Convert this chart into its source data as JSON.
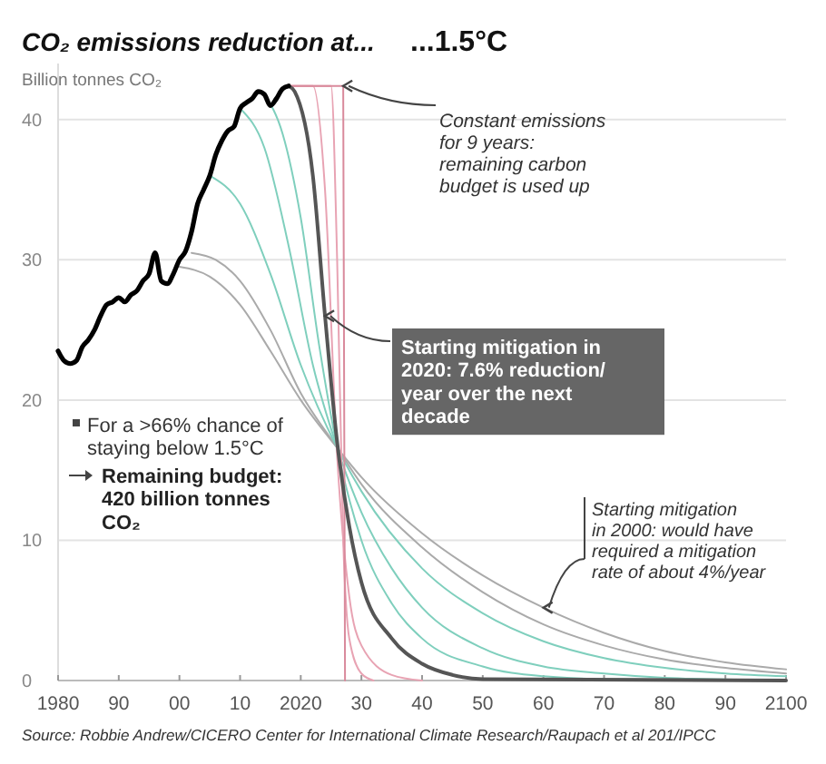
{
  "chart_data": {
    "type": "line",
    "title": "CO₂ emissions reduction at...",
    "subtitle": "...1.5°C",
    "ylabel": "Billion tonnes CO₂",
    "xlim": [
      1980,
      2100
    ],
    "ylim": [
      0,
      44
    ],
    "xticks": [
      1980,
      {
        "value": 1990,
        "label": "90"
      },
      {
        "value": 2000,
        "label": "00"
      },
      {
        "value": 2010,
        "label": "10"
      },
      2020,
      {
        "value": 2030,
        "label": "30"
      },
      {
        "value": 2040,
        "label": "40"
      },
      {
        "value": 2050,
        "label": "50"
      },
      {
        "value": 2060,
        "label": "60"
      },
      {
        "value": 2070,
        "label": "70"
      },
      {
        "value": 2080,
        "label": "80"
      },
      {
        "value": 2090,
        "label": "90"
      },
      2100
    ],
    "yticks": [
      0,
      10,
      20,
      30,
      40
    ],
    "grid": "y",
    "series": [
      {
        "color": "#aaaaaa",
        "x": [
          2000,
          2005,
          2010,
          2015,
          2020,
          2026,
          2030,
          2040,
          2050,
          2060,
          2070,
          2080,
          2090,
          2100
        ],
        "values": [
          29.5,
          28.8,
          26.8,
          23.5,
          20,
          16.6,
          14.5,
          10.5,
          7.5,
          5.2,
          3.4,
          2.1,
          1.3,
          0.8
        ]
      },
      {
        "color": "#aaaaaa",
        "x": [
          2002,
          2006,
          2010,
          2015,
          2020,
          2026,
          2030,
          2040,
          2050,
          2060,
          2070,
          2080,
          2090,
          2100
        ],
        "values": [
          30.5,
          30,
          28.5,
          25,
          20.5,
          16.6,
          14,
          9.5,
          6.3,
          4,
          2.5,
          1.5,
          0.9,
          0.5
        ]
      },
      {
        "color": "#7fcfbd",
        "x": [
          2005,
          2010,
          2015,
          2020,
          2026,
          2030,
          2040,
          2050,
          2060,
          2070,
          2080,
          2090,
          2100
        ],
        "values": [
          36,
          34,
          29,
          22.5,
          16.6,
          13.5,
          8,
          4.8,
          2.8,
          1.6,
          0.9,
          0.5,
          0.3
        ]
      },
      {
        "color": "#7fcfbd",
        "x": [
          2010,
          2014,
          2018,
          2022,
          2026,
          2030,
          2035,
          2040,
          2050,
          2060,
          2070,
          2080,
          2100
        ],
        "values": [
          40.8,
          38,
          31,
          22.5,
          16.6,
          12,
          8,
          5.2,
          2.3,
          1,
          0.5,
          0.2,
          0
        ]
      },
      {
        "color": "#7fcfbd",
        "x": [
          2014,
          2017,
          2020,
          2023,
          2026,
          2030,
          2035,
          2040,
          2050,
          2060,
          2070,
          2100
        ],
        "values": [
          41.8,
          39,
          33,
          24,
          16.6,
          10,
          5.5,
          3,
          1,
          0.3,
          0.1,
          0
        ]
      },
      {
        "color": "#e8a3b3",
        "x": [
          2018,
          2022,
          2024,
          2026,
          2028,
          2030,
          2035,
          2040
        ],
        "values": [
          42.4,
          42.4,
          35,
          16,
          6,
          2.5,
          0.4,
          0
        ]
      },
      {
        "color": "#e8a3b3",
        "x": [
          2018,
          2025,
          2026,
          2027,
          2028,
          2030,
          2032
        ],
        "values": [
          42.4,
          42.4,
          30,
          10,
          3,
          0.5,
          0
        ]
      },
      {
        "color": "#d98a9c",
        "x": [
          2018,
          2027,
          2027.3
        ],
        "values": [
          42.4,
          42.4,
          0
        ]
      },
      {
        "color": "#555555",
        "x": [
          2018,
          2019,
          2022,
          2024,
          2026,
          2028,
          2030,
          2035,
          2040,
          2045,
          2050,
          2100
        ],
        "values": [
          42.4,
          42,
          36,
          26,
          17,
          11,
          7,
          3,
          1.2,
          0.4,
          0.1,
          0
        ]
      },
      {
        "color": "#000000",
        "x": [
          1980,
          1981,
          1982,
          1983,
          1984,
          1985,
          1986,
          1987,
          1988,
          1989,
          1990,
          1991,
          1992,
          1993,
          1994,
          1995,
          1996,
          1997,
          1998,
          1999,
          2000,
          2001,
          2002,
          2003,
          2004,
          2005,
          2006,
          2007,
          2008,
          2009,
          2010,
          2011,
          2012,
          2013,
          2014,
          2015,
          2016,
          2017,
          2018
        ],
        "values": [
          23.5,
          22.8,
          22.6,
          22.8,
          23.8,
          24.3,
          25,
          26,
          26.8,
          27,
          27.3,
          27,
          27.5,
          27.8,
          28.5,
          29,
          30.5,
          28.5,
          28.3,
          29,
          30,
          30.6,
          32,
          34,
          35,
          36,
          37.5,
          38.5,
          39.2,
          39.5,
          40.8,
          41.2,
          41.5,
          42,
          41.8,
          41,
          41.5,
          42.2,
          42.4
        ]
      }
    ],
    "annotations": [
      {
        "text": "Constant emissions for 9 years: remaining carbon budget is used up",
        "x": 2027,
        "y": 42.4
      },
      {
        "text": "Starting mitigation in 2020: 7.6% reduction/ year over the next decade",
        "x": 2024,
        "y": 26
      },
      {
        "text": "Starting mitigation in 2000: would have required a mitigation rate of about 4%/year",
        "x": 2060,
        "y": 5.2
      },
      "For a >66% chance of staying below 1.5°C",
      "Remaining budget: 420 billion tonnes CO₂",
      "Source: Robbie Andrew/CICERO Center for International Climate Research/Raupach et al 201/IPCC"
    ]
  }
}
